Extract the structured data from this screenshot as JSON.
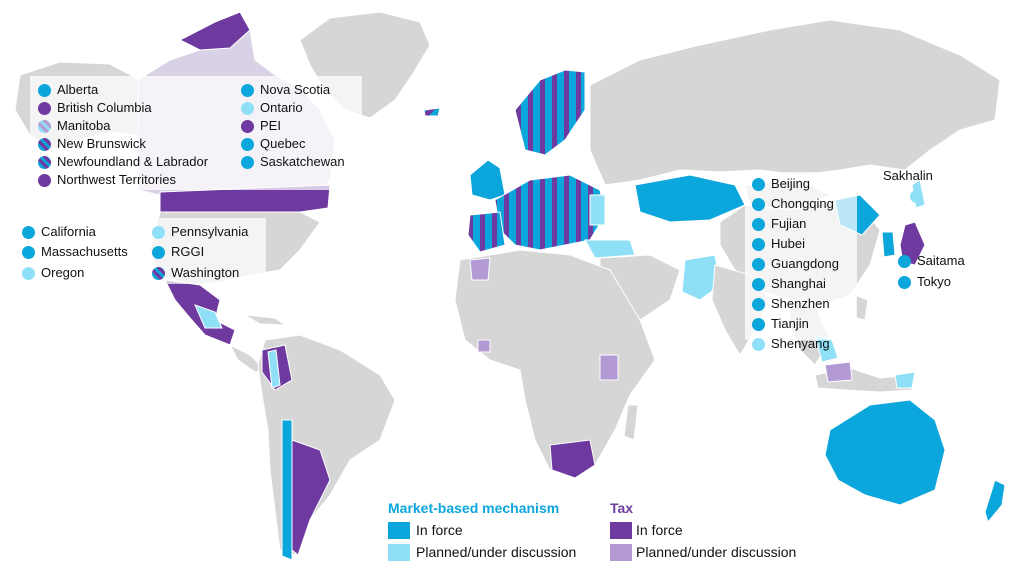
{
  "colors": {
    "market_in_force": "#0aa6dc",
    "market_planned": "#8fe0f7",
    "tax_in_force": "#6f3aa0",
    "tax_planned": "#b39ad4",
    "land": "#d6d6d6",
    "canada_fill": "#d9d2e6",
    "border": "#ffffff"
  },
  "legend": {
    "market_heading": "Market-based mechanism",
    "tax_heading": "Tax",
    "market_in_force": "In force",
    "market_planned": "Planned/under discussion",
    "tax_in_force": "In force",
    "tax_planned": "Planned/under discussion"
  },
  "canada_provinces": [
    {
      "name": "Alberta",
      "status": "market_in_force"
    },
    {
      "name": "British Columbia",
      "status": "tax_in_force"
    },
    {
      "name": "Manitoba",
      "status": "mixed_planned"
    },
    {
      "name": "New Brunswick",
      "status": "mixed"
    },
    {
      "name": "Newfoundland & Labrador",
      "status": "mixed"
    },
    {
      "name": "Northwest Territories",
      "status": "tax_in_force"
    },
    {
      "name": "Nova Scotia",
      "status": "market_in_force"
    },
    {
      "name": "Ontario",
      "status": "market_planned"
    },
    {
      "name": "PEI",
      "status": "tax_in_force"
    },
    {
      "name": "Quebec",
      "status": "market_in_force"
    },
    {
      "name": "Saskatchewan",
      "status": "market_in_force"
    }
  ],
  "us_states": [
    {
      "name": "California",
      "status": "market_in_force"
    },
    {
      "name": "Massachusetts",
      "status": "market_in_force"
    },
    {
      "name": "Oregon",
      "status": "market_planned"
    },
    {
      "name": "Pennsylvania",
      "status": "market_planned"
    },
    {
      "name": "RGGI",
      "status": "market_in_force"
    },
    {
      "name": "Washington",
      "status": "mixed"
    }
  ],
  "china_regions": [
    {
      "name": "Beijing",
      "status": "market_in_force"
    },
    {
      "name": "Chongqing",
      "status": "market_in_force"
    },
    {
      "name": "Fujian",
      "status": "market_in_force"
    },
    {
      "name": "Hubei",
      "status": "market_in_force"
    },
    {
      "name": "Guangdong",
      "status": "market_in_force"
    },
    {
      "name": "Shanghai",
      "status": "market_in_force"
    },
    {
      "name": "Shenzhen",
      "status": "market_in_force"
    },
    {
      "name": "Tianjin",
      "status": "market_in_force"
    },
    {
      "name": "Shenyang",
      "status": "market_planned"
    }
  ],
  "japan_regions": [
    {
      "name": "Saitama",
      "status": "market_in_force"
    },
    {
      "name": "Tokyo",
      "status": "market_in_force"
    }
  ],
  "russia_regions": [
    {
      "name": "Sakhalin",
      "status": "market_planned"
    }
  ]
}
